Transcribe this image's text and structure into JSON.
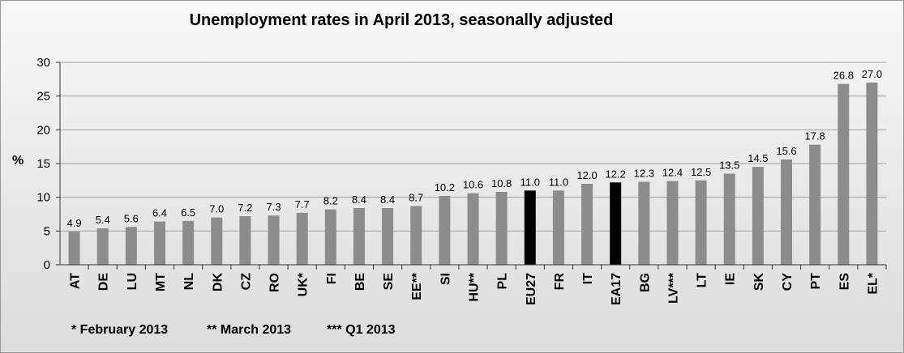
{
  "chart_data": {
    "type": "bar",
    "title": "Unemployment rates in April 2013, seasonally adjusted",
    "ylabel": "%",
    "xlabel": "",
    "ylim": [
      0,
      30
    ],
    "yticks": [
      0,
      5,
      10,
      15,
      20,
      25,
      30
    ],
    "ytick_labels": [
      "0",
      "5",
      "10",
      "15",
      "20",
      "25",
      "30"
    ],
    "grid": true,
    "categories": [
      "AT",
      "DE",
      "LU",
      "MT",
      "NL",
      "DK",
      "CZ",
      "RO",
      "UK*",
      "FI",
      "BE",
      "SE",
      "EE**",
      "SI",
      "HU**",
      "PL",
      "EU27",
      "FR",
      "IT",
      "EA17",
      "BG",
      "LV***",
      "LT",
      "IE",
      "SK",
      "CY",
      "PT",
      "ES",
      "EL*"
    ],
    "values": [
      4.9,
      5.4,
      5.6,
      6.4,
      6.5,
      7.0,
      7.2,
      7.3,
      7.7,
      8.2,
      8.4,
      8.4,
      8.7,
      10.2,
      10.6,
      10.8,
      11.0,
      11.0,
      12.0,
      12.2,
      12.3,
      12.4,
      12.5,
      13.5,
      14.5,
      15.6,
      17.8,
      26.8,
      27.0
    ],
    "value_labels": [
      "4.9",
      "5.4",
      "5.6",
      "6.4",
      "6.5",
      "7.0",
      "7.2",
      "7.3",
      "7.7",
      "8.2",
      "8.4",
      "8.4",
      "8.7",
      "10.2",
      "10.6",
      "10.8",
      "11.0",
      "11.0",
      "12.0",
      "12.2",
      "12.3",
      "12.4",
      "12.5",
      "13.5",
      "14.5",
      "15.6",
      "17.8",
      "26.8",
      "27.0"
    ],
    "highlighted_categories": [
      "EU27",
      "EA17"
    ],
    "colors": {
      "bar": "#8c8c8c",
      "highlight": "#000000",
      "grid": "#a0a0a0"
    },
    "footnotes": [
      "* February 2013",
      "** March 2013",
      "*** Q1 2013"
    ]
  }
}
